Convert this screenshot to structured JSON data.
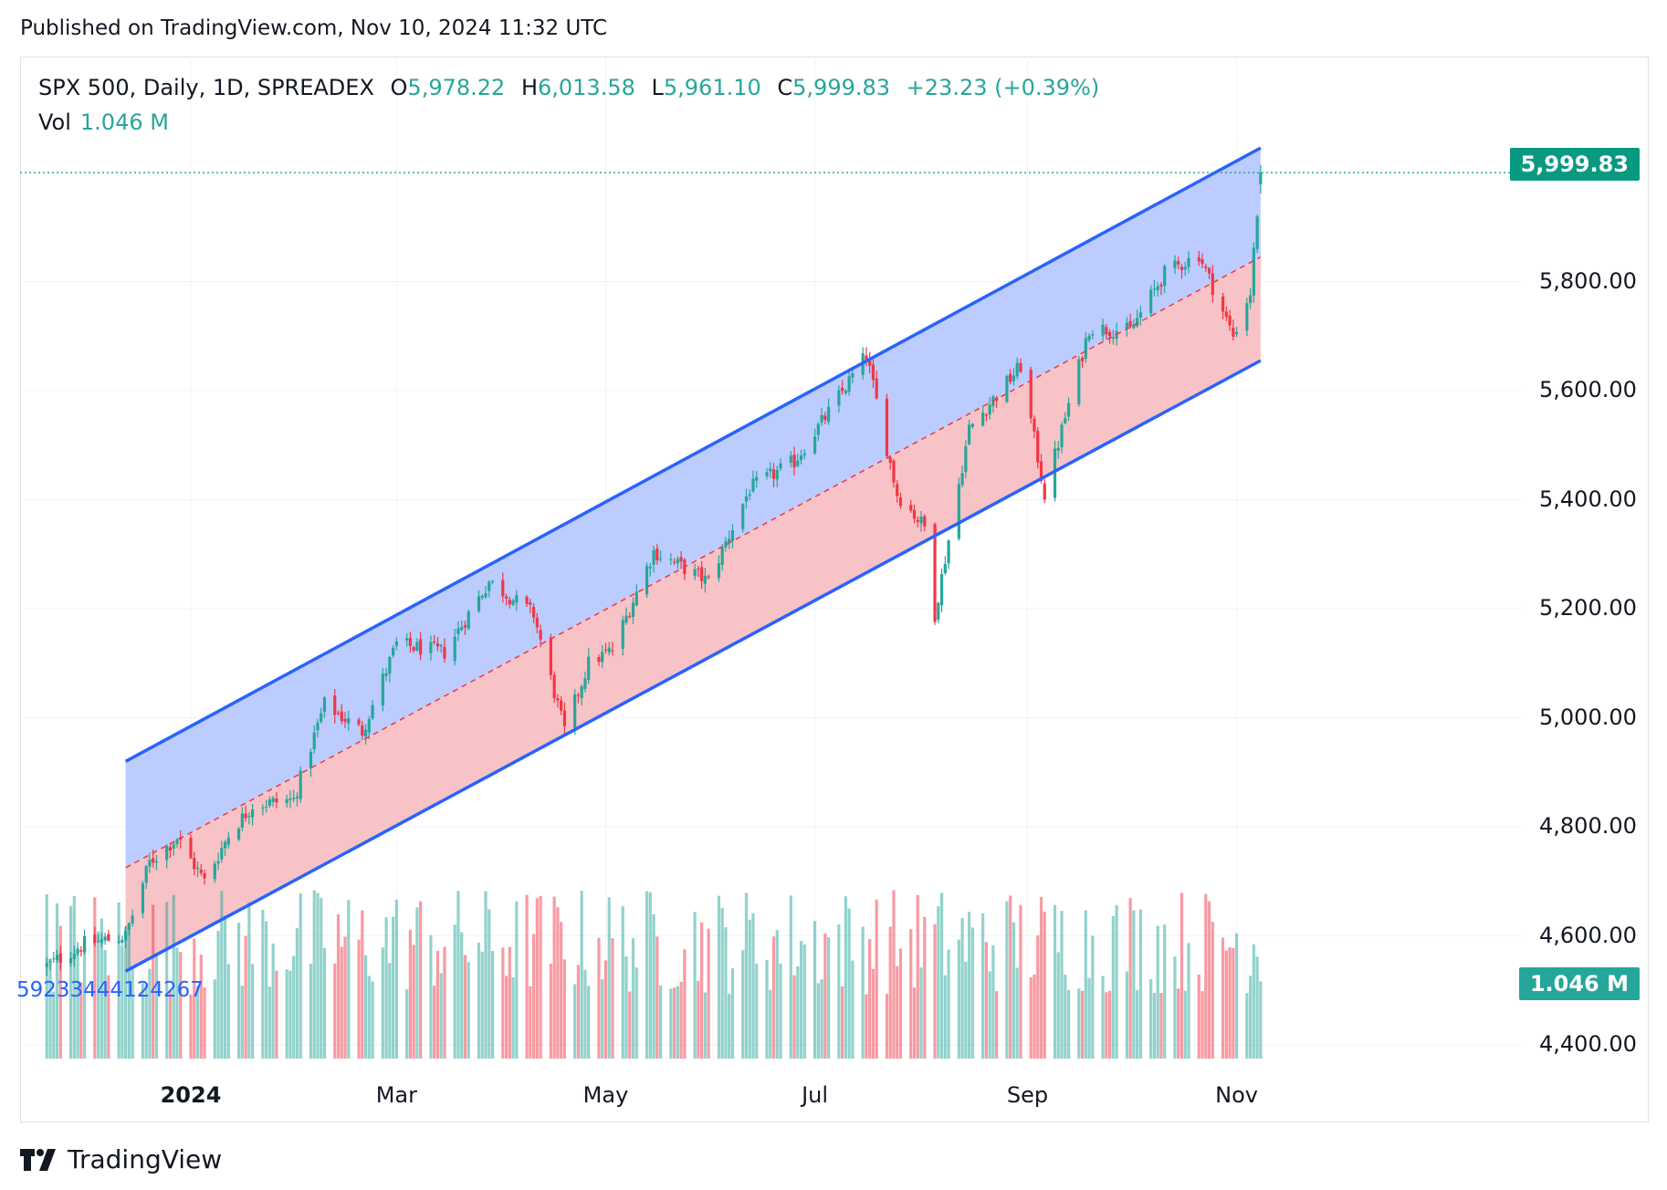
{
  "published": "Published on TradingView.com, Nov 10, 2024 11:32 UTC",
  "legend": {
    "symbol": "SPX 500, Daily, 1D, SPREADEX",
    "o_label": "O",
    "o": "5,978.22",
    "h_label": "H",
    "h": "6,013.58",
    "l_label": "L",
    "l": "5,961.10",
    "c_label": "C",
    "c": "5,999.83",
    "change": "+23.23 (+0.39%)",
    "vol_label": "Vol",
    "vol": "1.046 M"
  },
  "price_badge": "5,999.83",
  "vol_badge": "1.046 M",
  "volume_overlay_text": "59233444124267",
  "brand": "TradingView",
  "colors": {
    "up": "#26a69a",
    "down": "#f23645",
    "channel_line": "#2962ff",
    "upper_fill": "#bcccff",
    "lower_fill": "#f8c3c7"
  },
  "chart_data": {
    "type": "candlestick",
    "y_ticks": [
      "5,800.00",
      "5,600.00",
      "5,400.00",
      "5,200.00",
      "5,000.00",
      "4,800.00",
      "4,600.00",
      "4,400.00"
    ],
    "y_tick_values": [
      5800,
      5600,
      5400,
      5200,
      5000,
      4800,
      4600,
      4400
    ],
    "x_ticks": [
      {
        "label": "2024",
        "date": "2024-01-01",
        "bold": true
      },
      {
        "label": "Mar",
        "date": "2024-03-01",
        "bold": false
      },
      {
        "label": "May",
        "date": "2024-05-01",
        "bold": false
      },
      {
        "label": "Jul",
        "date": "2024-07-01",
        "bold": false
      },
      {
        "label": "Sep",
        "date": "2024-09-01",
        "bold": false
      },
      {
        "label": "Nov",
        "date": "2024-11-01",
        "bold": false
      }
    ],
    "last_close": 5999.83,
    "channel": {
      "start_date": "2023-12-13",
      "end_date": "2024-11-08",
      "upper": [
        4920,
        6045
      ],
      "mid": [
        4725,
        5845
      ],
      "lower": [
        4535,
        5655
      ]
    },
    "price_path": [
      [
        "2023-11-20",
        4545
      ],
      [
        "2023-12-01",
        4585
      ],
      [
        "2023-12-13",
        4600
      ],
      [
        "2023-12-20",
        4735
      ],
      [
        "2023-12-28",
        4780
      ],
      [
        "2024-01-05",
        4700
      ],
      [
        "2024-01-12",
        4785
      ],
      [
        "2024-01-19",
        4840
      ],
      [
        "2024-01-31",
        4850
      ],
      [
        "2024-02-09",
        5025
      ],
      [
        "2024-02-20",
        4975
      ],
      [
        "2024-03-01",
        5135
      ],
      [
        "2024-03-15",
        5120
      ],
      [
        "2024-03-28",
        5250
      ],
      [
        "2024-04-10",
        5190
      ],
      [
        "2024-04-19",
        4975
      ],
      [
        "2024-04-26",
        5100
      ],
      [
        "2024-05-03",
        5125
      ],
      [
        "2024-05-15",
        5305
      ],
      [
        "2024-05-31",
        5250
      ],
      [
        "2024-06-12",
        5420
      ],
      [
        "2024-06-25",
        5470
      ],
      [
        "2024-07-05",
        5560
      ],
      [
        "2024-07-16",
        5665
      ],
      [
        "2024-07-25",
        5410
      ],
      [
        "2024-08-02",
        5350
      ],
      [
        "2024-08-05",
        5190
      ],
      [
        "2024-08-15",
        5530
      ],
      [
        "2024-08-30",
        5645
      ],
      [
        "2024-09-06",
        5410
      ],
      [
        "2024-09-19",
        5715
      ],
      [
        "2024-10-01",
        5710
      ],
      [
        "2024-10-11",
        5815
      ],
      [
        "2024-10-21",
        5850
      ],
      [
        "2024-10-31",
        5700
      ],
      [
        "2024-11-05",
        5780
      ],
      [
        "2024-11-08",
        6000
      ]
    ],
    "volume_range": [
      0.15,
      2.4
    ]
  }
}
